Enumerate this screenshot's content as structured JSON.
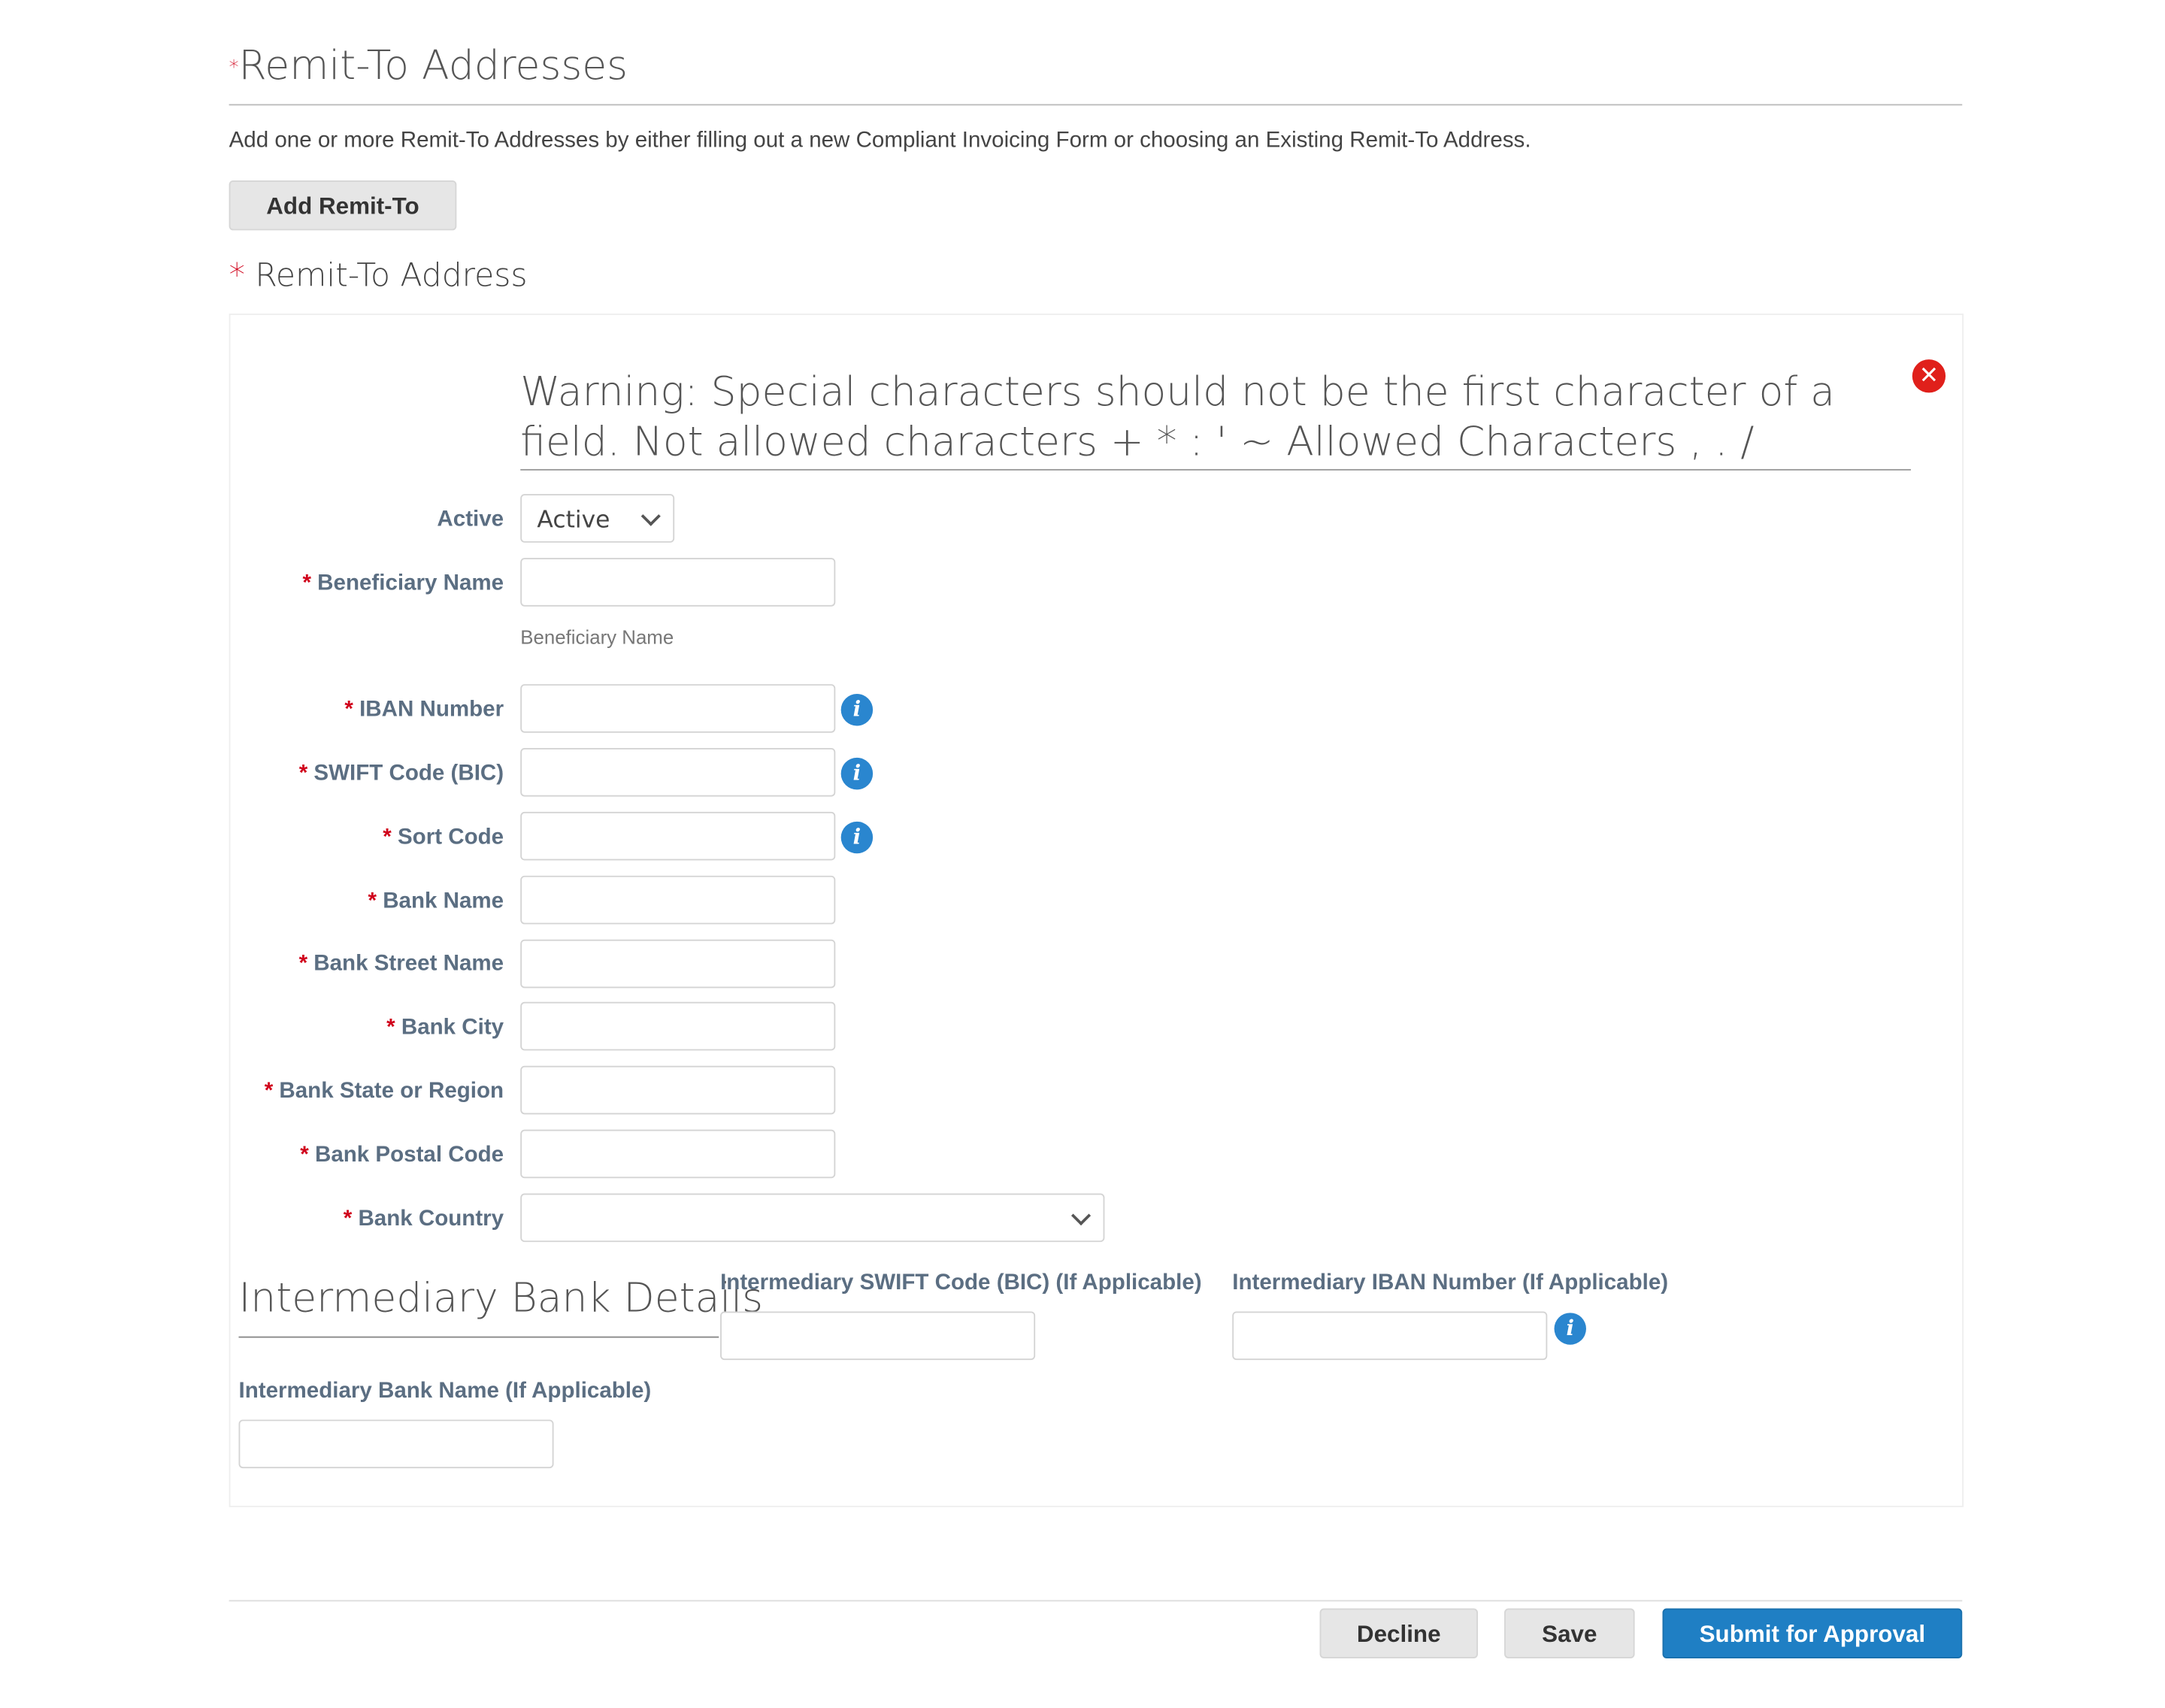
{
  "section": {
    "title": "Remit-To Addresses",
    "required_mark": "*",
    "description": "Add one or more Remit-To Addresses by either filling out a new Compliant Invoicing Form or choosing an Existing Remit-To Address.",
    "add_button": "Add Remit-To"
  },
  "address": {
    "title": "Remit-To Address",
    "required_mark": "*",
    "warning": "Warning: Special characters should not be the first character of a field. Not allowed characters + * : ' ~ Allowed Characters , . /",
    "fields": {
      "active": {
        "label": "Active",
        "value": "Active"
      },
      "beneficiary": {
        "label": "Beneficiary Name",
        "hint": "Beneficiary Name"
      },
      "iban": {
        "label": "IBAN Number"
      },
      "swift": {
        "label": "SWIFT Code (BIC)"
      },
      "sort": {
        "label": "Sort Code"
      },
      "bank_name": {
        "label": "Bank Name"
      },
      "street": {
        "label": "Bank Street Name"
      },
      "city": {
        "label": "Bank City"
      },
      "state": {
        "label": "Bank State or Region"
      },
      "postal": {
        "label": "Bank Postal Code"
      },
      "country": {
        "label": "Bank Country",
        "value": ""
      }
    },
    "intermediary": {
      "title": "Intermediary Bank Details",
      "swift_label": "Intermediary SWIFT Code (BIC) (If Applicable)",
      "iban_label": "Intermediary IBAN Number (If Applicable)",
      "name_label": "Intermediary Bank Name (If Applicable)"
    }
  },
  "footer": {
    "decline": "Decline",
    "save": "Save",
    "submit": "Submit for Approval"
  },
  "colors": {
    "accent": "#1f7fc4",
    "required": "#d0021b",
    "label": "#5b6e82",
    "close": "#e0201b"
  }
}
